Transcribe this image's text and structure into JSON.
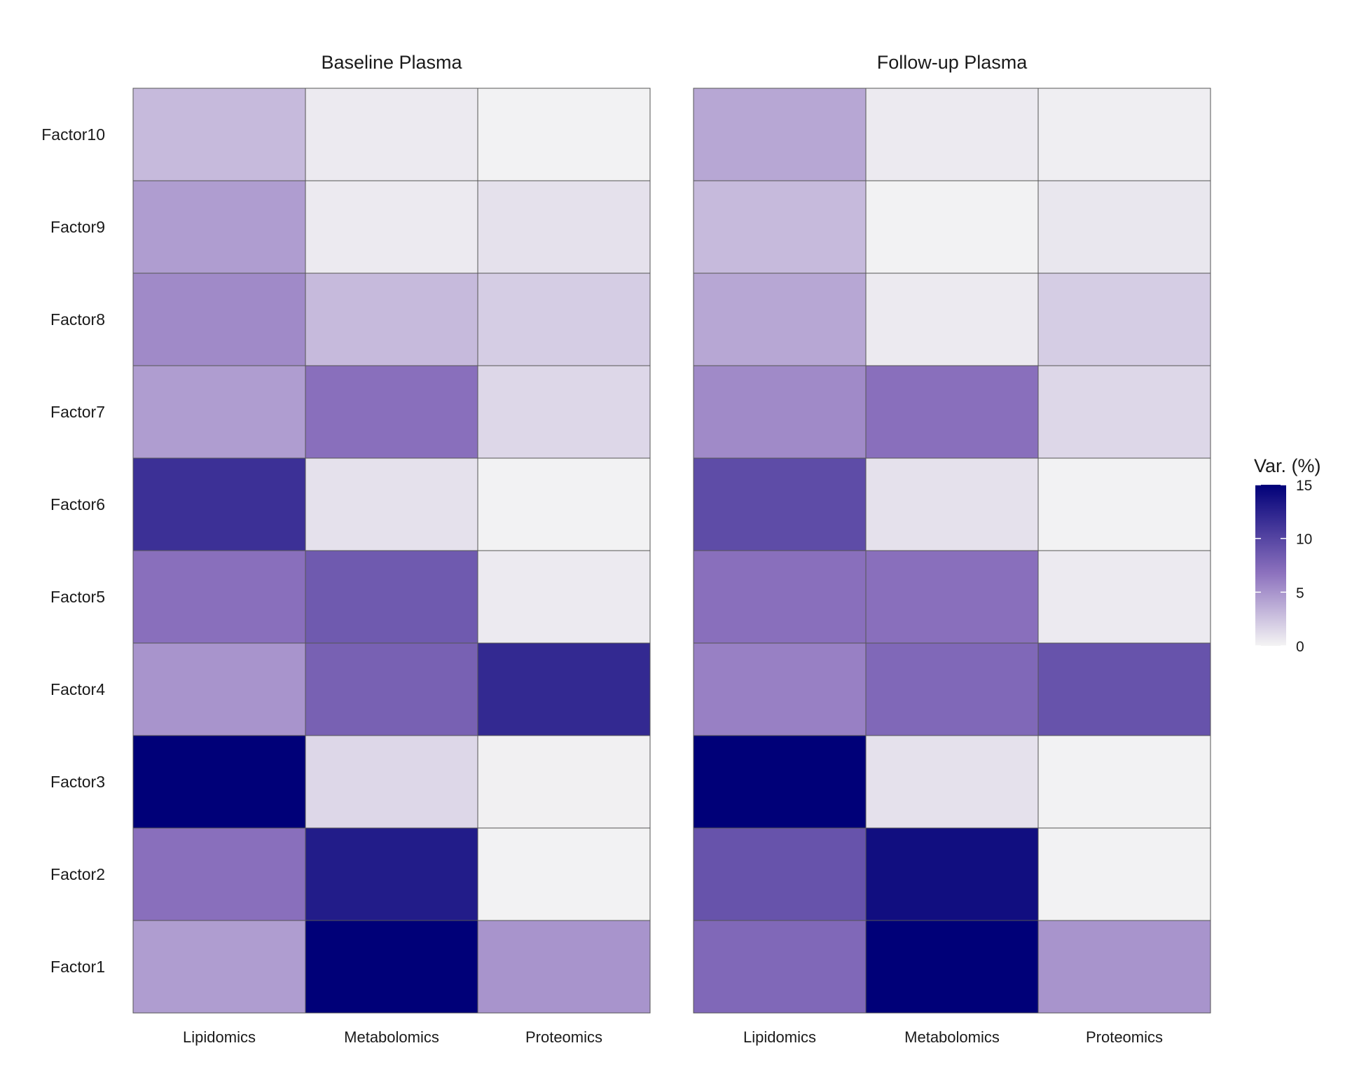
{
  "chart_data": {
    "type": "heatmap",
    "facets": [
      "Baseline Plasma",
      "Follow-up Plasma"
    ],
    "rows": [
      "Factor10",
      "Factor9",
      "Factor8",
      "Factor7",
      "Factor6",
      "Factor5",
      "Factor4",
      "Factor3",
      "Factor2",
      "Factor1"
    ],
    "columns": [
      "Lipidomics",
      "Metabolomics",
      "Proteomics"
    ],
    "values": [
      [
        [
          3.0,
          0.5,
          0.1
        ],
        [
          4.5,
          0.5,
          1.0
        ],
        [
          5.5,
          3.0,
          2.0
        ],
        [
          4.5,
          7.0,
          1.5
        ],
        [
          11.5,
          1.0,
          0.1
        ],
        [
          7.0,
          8.5,
          0.5
        ],
        [
          5.0,
          8.0,
          12.0
        ],
        [
          15.0,
          1.5,
          0.2
        ],
        [
          7.0,
          13.0,
          0.1
        ],
        [
          4.5,
          15.0,
          5.0
        ]
      ],
      [
        [
          4.0,
          0.5,
          0.3
        ],
        [
          3.0,
          0.1,
          0.7
        ],
        [
          4.0,
          0.5,
          2.0
        ],
        [
          5.5,
          7.0,
          1.5
        ],
        [
          9.5,
          1.0,
          0.1
        ],
        [
          7.0,
          7.0,
          0.5
        ],
        [
          6.0,
          7.5,
          9.0
        ],
        [
          15.0,
          1.0,
          0.1
        ],
        [
          9.0,
          14.0,
          0.1
        ],
        [
          7.5,
          15.0,
          5.0
        ]
      ]
    ],
    "legend": {
      "title": "Var. (%)",
      "ticks": [
        0,
        5,
        10,
        15
      ],
      "min": 0,
      "max": 15,
      "position": "right"
    },
    "colors": {
      "low": "#f4f4f4",
      "mid": "#8d72be",
      "high": "#000078",
      "border": "#555555"
    }
  }
}
